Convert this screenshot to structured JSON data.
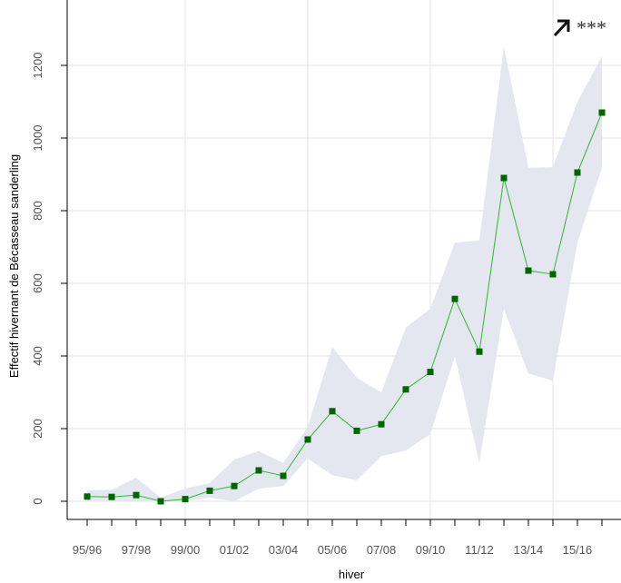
{
  "chart_data": {
    "type": "line",
    "xlabel": "hiver",
    "ylabel": "Effectif hivernant de Bécasseau sanderling",
    "ylim": [
      -50,
      1380
    ],
    "yticks": [
      0,
      200,
      400,
      600,
      800,
      1000,
      1200
    ],
    "categories": [
      "95/96",
      "96/97",
      "97/98",
      "98/99",
      "99/00",
      "00/01",
      "01/02",
      "02/03",
      "03/04",
      "04/05",
      "05/06",
      "06/07",
      "07/08",
      "08/09",
      "09/10",
      "10/11",
      "11/12",
      "12/13",
      "13/14",
      "14/15",
      "15/16",
      "16/17"
    ],
    "xtick_labels": [
      "95/96",
      "97/98",
      "99/00",
      "01/02",
      "03/04",
      "05/06",
      "07/08",
      "09/10",
      "11/12",
      "13/14",
      "15/16"
    ],
    "xtick_label_indices": [
      0,
      2,
      4,
      6,
      8,
      10,
      12,
      14,
      16,
      18,
      20
    ],
    "x_gridline_indices": [
      4,
      9,
      14,
      19
    ],
    "series": [
      {
        "values": [
          13,
          12,
          17,
          0,
          6,
          29,
          42,
          85,
          70,
          170,
          248,
          194,
          212,
          308,
          356,
          557,
          412,
          890,
          635,
          625,
          905,
          1070
        ],
        "color": "#006400",
        "line_color": "#2eb82e",
        "marker": "square"
      }
    ],
    "confidence_band": {
      "upper": [
        30,
        32,
        65,
        10,
        35,
        50,
        115,
        138,
        105,
        205,
        425,
        340,
        300,
        478,
        530,
        712,
        718,
        1252,
        918,
        920,
        1100,
        1225
      ],
      "lower": [
        2,
        2,
        0,
        0,
        0,
        10,
        0,
        35,
        42,
        118,
        72,
        58,
        124,
        140,
        185,
        400,
        105,
        530,
        352,
        332,
        712,
        918
      ],
      "color": "#e4e7ef"
    },
    "trend": {
      "arrow": "up-right",
      "significance": "***"
    },
    "grid": true
  }
}
